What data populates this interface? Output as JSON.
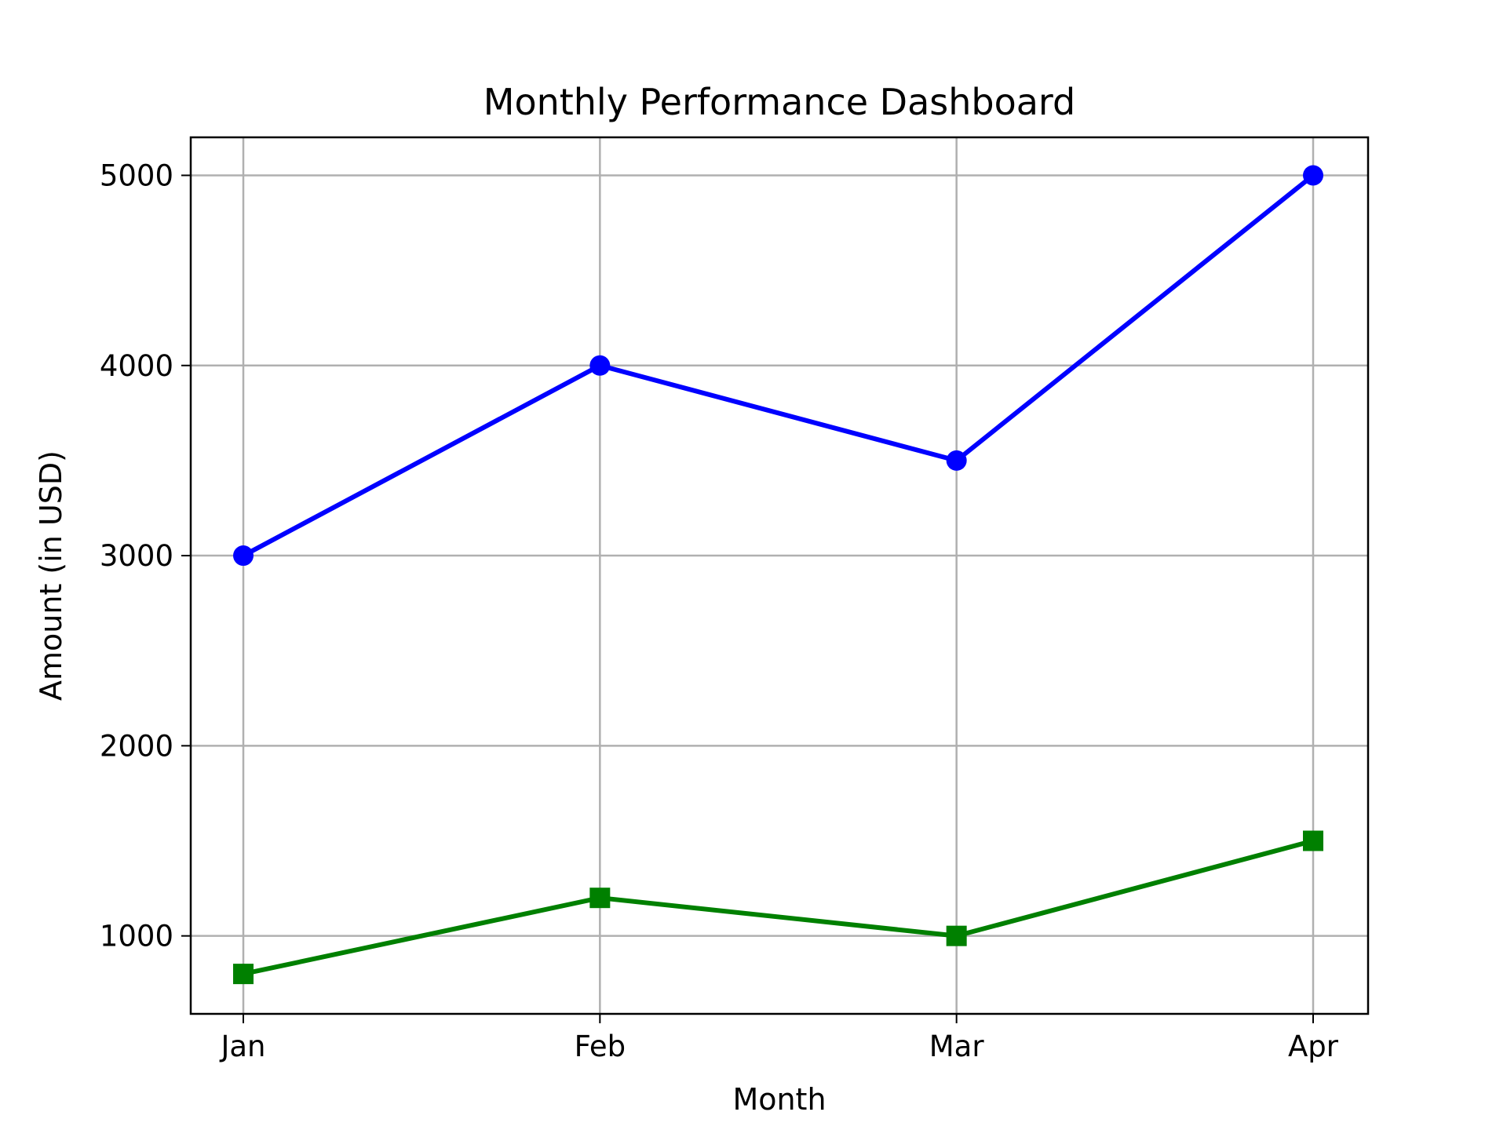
{
  "chart_data": {
    "type": "line",
    "title": "Monthly Performance Dashboard",
    "xlabel": "Month",
    "ylabel": "Amount (in USD)",
    "categories": [
      "Jan",
      "Feb",
      "Mar",
      "Apr"
    ],
    "ylim": [
      590,
      5200
    ],
    "yticks": [
      1000,
      2000,
      3000,
      4000,
      5000
    ],
    "grid": true,
    "legend": "none",
    "series": [
      {
        "values": [
          3000,
          4000,
          3500,
          5000
        ],
        "color": "#0000ff",
        "marker": "circle"
      },
      {
        "values": [
          800,
          1200,
          1000,
          1500
        ],
        "color": "#008000",
        "marker": "square"
      }
    ]
  }
}
